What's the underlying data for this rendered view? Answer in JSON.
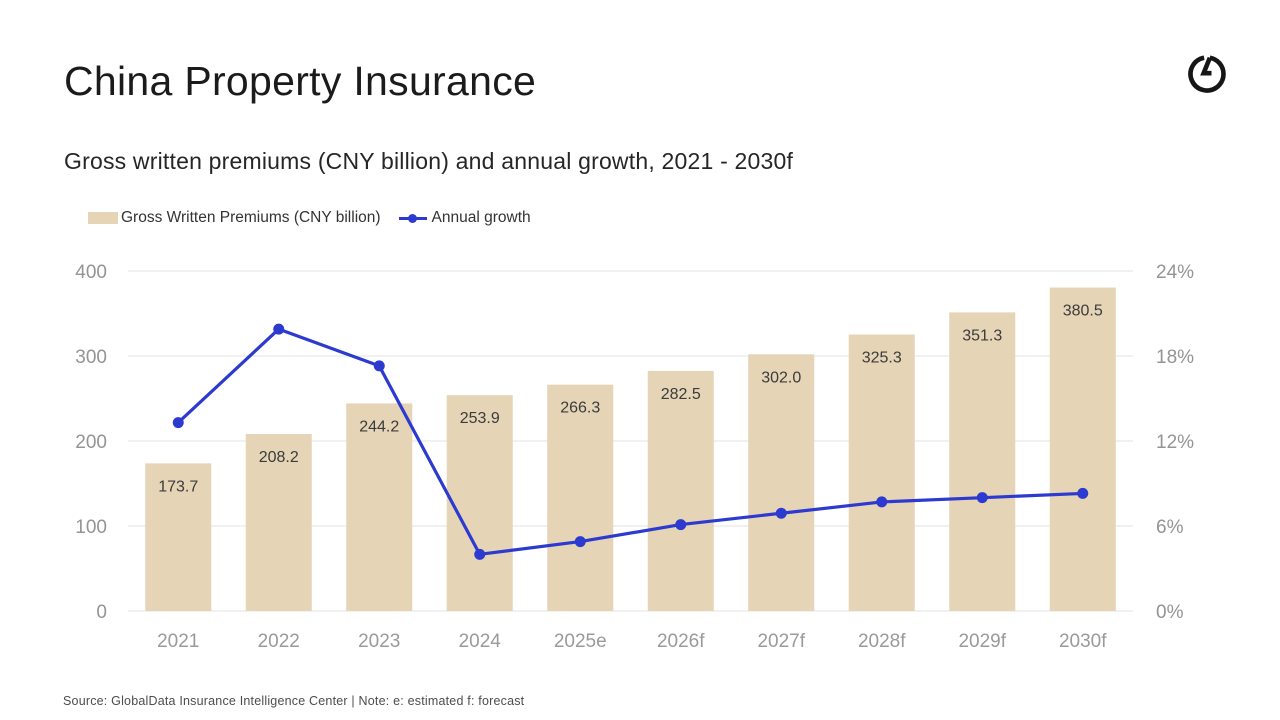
{
  "page": {
    "title": "China Property Insurance",
    "subtitle": "Gross written premiums (CNY billion) and annual growth, 2021 - 2030f",
    "footer": "Source: GlobalData Insurance Intelligence Center | Note: e: estimated f: forecast",
    "logo_icon": "globaldata-logo-icon",
    "logo_color": "#161616"
  },
  "chart_data": {
    "type": "combo_bar_line",
    "title": "China Property Insurance",
    "subtitle": "Gross written premiums (CNY billion) and annual growth, 2021 - 2030f",
    "categories": [
      "2021",
      "2022",
      "2023",
      "2024",
      "2025e",
      "2026f",
      "2027f",
      "2028f",
      "2029f",
      "2030f"
    ],
    "series": [
      {
        "name": "Gross Written Premiums (CNY billion)",
        "type": "bar",
        "axis": "left",
        "color": "#e5d4b6",
        "values": [
          173.7,
          208.2,
          244.2,
          253.9,
          266.3,
          282.5,
          302.0,
          325.3,
          351.3,
          380.5
        ],
        "value_labels": [
          "173.7",
          "208.2",
          "244.2",
          "253.9",
          "266.3",
          "282.5",
          "302.0",
          "325.3",
          "351.3",
          "380.5"
        ]
      },
      {
        "name": "Annual growth",
        "type": "line",
        "axis": "right",
        "unit": "%",
        "color": "#2c3ad0",
        "values": [
          13.3,
          19.9,
          17.3,
          4.0,
          4.9,
          6.1,
          6.9,
          7.7,
          8.0,
          8.3
        ]
      }
    ],
    "left_axis": {
      "min": 0,
      "max": 400,
      "ticks": [
        "0",
        "100",
        "200",
        "300",
        "400"
      ]
    },
    "right_axis": {
      "min": 0,
      "max": 24,
      "ticks": [
        "0%",
        "6%",
        "12%",
        "18%",
        "24%"
      ]
    },
    "grid": true,
    "grid_color": "#e3e3e3",
    "legend_position": "top-left"
  }
}
